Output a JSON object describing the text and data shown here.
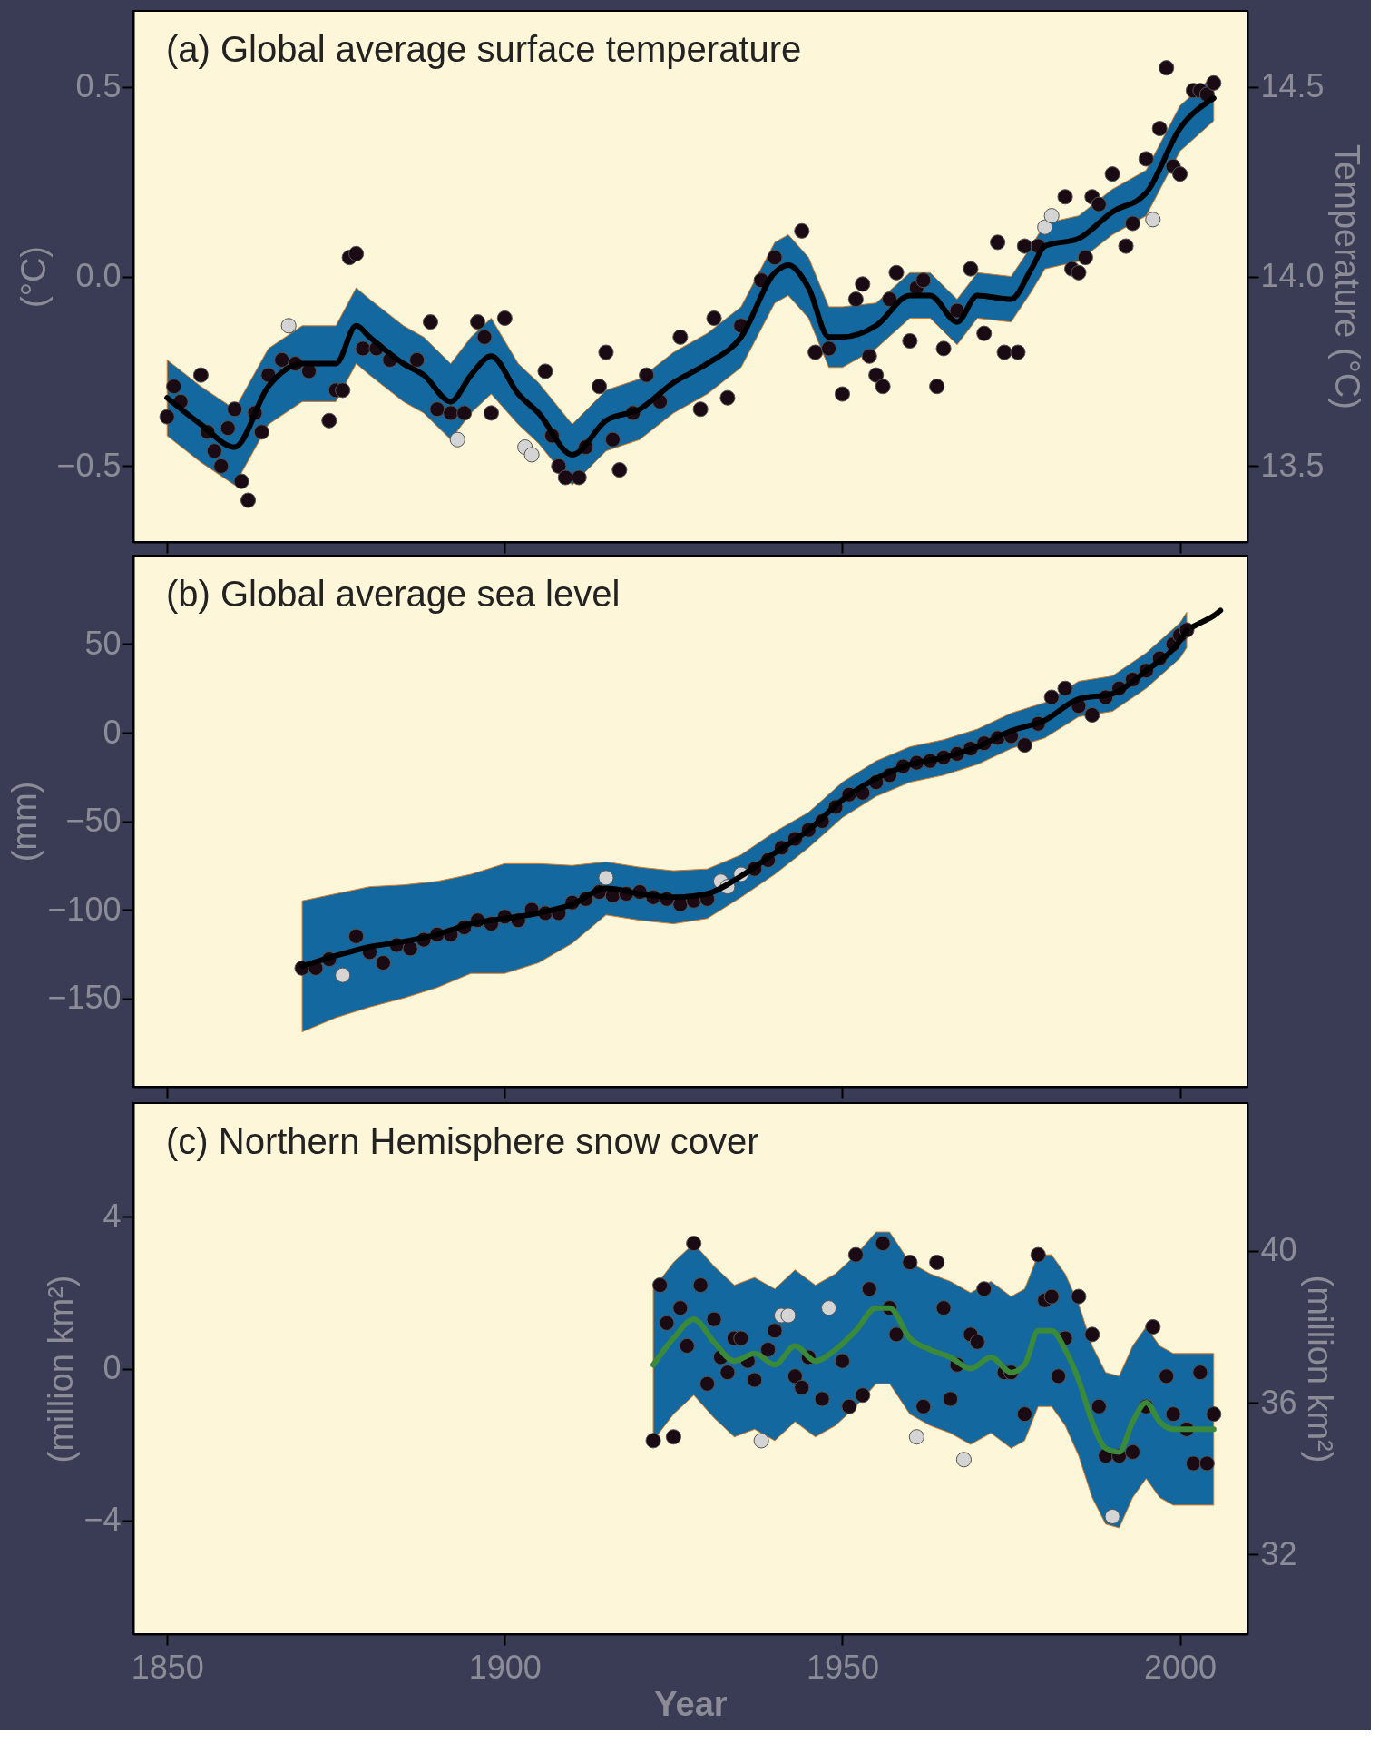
{
  "chart_data": [
    {
      "type": "scatter",
      "title": "(a) Global average surface temperature",
      "ylabel": "(°C)",
      "y2label": "Temperature (°C)",
      "xlim": [
        1845,
        2010
      ],
      "xticks": [
        1850,
        1900,
        1950,
        2000
      ],
      "ylim": [
        -0.7,
        0.7
      ],
      "yticks": [
        {
          "value": -0.5,
          "label": "−0.5"
        },
        {
          "value": 0,
          "label": "0.0"
        },
        0.5
      ],
      "y2lim": [
        13.3,
        14.7
      ],
      "y2ticks": [
        13.5,
        {
          "value": 14,
          "label": "14.0"
        },
        14.5
      ],
      "tick_labels": "y",
      "marker": "circle",
      "series": [
        {
          "type": "line",
          "marker": "none",
          "color": "#000000",
          "x": [
            1850,
            1855,
            1860,
            1865,
            1870,
            1875,
            1878,
            1880,
            1885,
            1888,
            1892,
            1895,
            1898,
            1902,
            1905,
            1910,
            1915,
            1920,
            1925,
            1930,
            1935,
            1940,
            1942,
            1945,
            1948,
            1950,
            1955,
            1960,
            1963,
            1967,
            1970,
            1975,
            1978,
            1980,
            1985,
            1990,
            1995,
            2000,
            2005
          ],
          "values": [
            -0.32,
            -0.39,
            -0.45,
            -0.29,
            -0.23,
            -0.23,
            -0.13,
            -0.16,
            -0.23,
            -0.26,
            -0.33,
            -0.26,
            -0.21,
            -0.31,
            -0.36,
            -0.47,
            -0.38,
            -0.35,
            -0.28,
            -0.23,
            -0.16,
            0.01,
            0.03,
            -0.03,
            -0.16,
            -0.16,
            -0.13,
            -0.05,
            -0.05,
            -0.12,
            -0.05,
            -0.06,
            0.02,
            0.08,
            0.1,
            0.17,
            0.22,
            0.39,
            0.47
          ],
          "upper": [
            -0.22,
            -0.29,
            -0.35,
            -0.19,
            -0.13,
            -0.13,
            -0.03,
            -0.06,
            -0.13,
            -0.16,
            -0.23,
            -0.16,
            -0.11,
            -0.23,
            -0.28,
            -0.39,
            -0.3,
            -0.27,
            -0.2,
            -0.15,
            -0.08,
            0.09,
            0.11,
            0.05,
            -0.08,
            -0.08,
            -0.07,
            0.01,
            0.01,
            -0.06,
            0.01,
            0.0,
            0.08,
            0.14,
            0.16,
            0.23,
            0.28,
            0.45,
            0.53
          ],
          "lower": [
            -0.42,
            -0.49,
            -0.55,
            -0.39,
            -0.33,
            -0.33,
            -0.23,
            -0.26,
            -0.33,
            -0.36,
            -0.43,
            -0.36,
            -0.31,
            -0.39,
            -0.44,
            -0.55,
            -0.46,
            -0.43,
            -0.36,
            -0.31,
            -0.24,
            -0.07,
            -0.05,
            -0.11,
            -0.24,
            -0.24,
            -0.19,
            -0.11,
            -0.11,
            -0.18,
            -0.11,
            -0.12,
            -0.04,
            0.02,
            0.04,
            0.11,
            0.16,
            0.33,
            0.41
          ]
        },
        {
          "color": "#1a0a14",
          "x": [
            1850,
            1851,
            1852,
            1855,
            1856,
            1857,
            1858,
            1859,
            1860,
            1861,
            1862,
            1863,
            1864,
            1865,
            1867,
            1869,
            1871,
            1874,
            1875,
            1876,
            1877,
            1878,
            1879,
            1881,
            1883,
            1887,
            1889,
            1890,
            1892,
            1894,
            1896,
            1897,
            1898,
            1900,
            1906,
            1907,
            1908,
            1909,
            1911,
            1912,
            1914,
            1915,
            1916,
            1917,
            1919,
            1921,
            1923,
            1926,
            1929,
            1931,
            1933,
            1935,
            1938,
            1940,
            1944,
            1946,
            1948,
            1950,
            1952,
            1953,
            1954,
            1955,
            1956,
            1957,
            1958,
            1960,
            1961,
            1962,
            1964,
            1965,
            1967,
            1969,
            1971,
            1973,
            1974,
            1976,
            1977,
            1979,
            1983,
            1984,
            1985,
            1986,
            1987,
            1988,
            1990,
            1992,
            1993,
            1995,
            1997,
            1998,
            1999,
            2000,
            2002,
            2003,
            2004,
            2005
          ],
          "values": [
            -0.37,
            -0.29,
            -0.33,
            -0.26,
            -0.41,
            -0.46,
            -0.5,
            -0.4,
            -0.35,
            -0.54,
            -0.59,
            -0.36,
            -0.41,
            -0.26,
            -0.22,
            -0.23,
            -0.25,
            -0.38,
            -0.3,
            -0.3,
            0.05,
            0.06,
            -0.19,
            -0.19,
            -0.22,
            -0.22,
            -0.12,
            -0.35,
            -0.36,
            -0.36,
            -0.12,
            -0.16,
            -0.36,
            -0.11,
            -0.25,
            -0.42,
            -0.5,
            -0.53,
            -0.53,
            -0.45,
            -0.29,
            -0.2,
            -0.43,
            -0.51,
            -0.36,
            -0.26,
            -0.33,
            -0.16,
            -0.35,
            -0.11,
            -0.32,
            -0.13,
            -0.01,
            0.05,
            0.12,
            -0.2,
            -0.19,
            -0.31,
            -0.06,
            -0.02,
            -0.21,
            -0.26,
            -0.29,
            -0.06,
            0.01,
            -0.17,
            -0.03,
            -0.01,
            -0.29,
            -0.19,
            -0.09,
            0.02,
            -0.15,
            0.09,
            -0.2,
            -0.2,
            0.08,
            0.08,
            0.21,
            0.02,
            0.01,
            0.05,
            0.21,
            0.19,
            0.27,
            0.08,
            0.14,
            0.31,
            0.39,
            0.55,
            0.29,
            0.27,
            0.49,
            0.49,
            0.48,
            0.51
          ]
        },
        {
          "color": "#d4d4d4",
          "x": [
            1868,
            1893,
            1903,
            1904,
            1980,
            1981,
            1996
          ],
          "values": [
            -0.13,
            -0.43,
            -0.45,
            -0.47,
            0.13,
            0.16,
            0.15
          ]
        }
      ]
    },
    {
      "type": "scatter",
      "title": "(b) Global average sea level",
      "ylabel": "(mm)",
      "xlim": [
        1845,
        2010
      ],
      "xticks": [
        1850,
        1900,
        1950,
        2000
      ],
      "ylim": [
        -200,
        100
      ],
      "yticks": [
        {
          "value": -150,
          "label": "−150"
        },
        {
          "value": -100,
          "label": "−100"
        },
        {
          "value": -50,
          "label": "−50"
        },
        0,
        50
      ],
      "tick_labels": "y",
      "marker": "circle",
      "series": [
        {
          "type": "line",
          "marker": "none",
          "color": "#000000",
          "x": [
            1870,
            1875,
            1880,
            1885,
            1890,
            1895,
            1900,
            1905,
            1910,
            1915,
            1920,
            1925,
            1930,
            1935,
            1940,
            1945,
            1950,
            1955,
            1960,
            1965,
            1970,
            1975,
            1980,
            1985,
            1990,
            1995,
            2000,
            2001
          ],
          "values": [
            -132,
            -126,
            -121,
            -118,
            -114,
            -108,
            -105,
            -102,
            -97,
            -88,
            -91,
            -93,
            -91,
            -81,
            -68,
            -55,
            -38,
            -26,
            -18,
            -14,
            -8,
            1,
            7,
            19,
            22,
            35,
            52,
            58
          ],
          "upper": [
            -95,
            -91,
            -87,
            -86,
            -84,
            -80,
            -74,
            -74,
            -75,
            -73,
            -76,
            -78,
            -77,
            -69,
            -56,
            -45,
            -28,
            -16,
            -8,
            -4,
            2,
            11,
            17,
            29,
            32,
            45,
            62,
            68
          ],
          "lower": [
            -169,
            -161,
            -155,
            -150,
            -144,
            -136,
            -136,
            -130,
            -119,
            -103,
            -106,
            -108,
            -105,
            -93,
            -80,
            -65,
            -48,
            -36,
            -28,
            -24,
            -18,
            -9,
            -3,
            9,
            12,
            25,
            42,
            48
          ]
        },
        {
          "type": "line",
          "marker": "none",
          "color": "#000000",
          "x": [
            2002,
            2003,
            2005,
            2006
          ],
          "values": [
            60,
            62,
            66,
            69
          ]
        },
        {
          "color": "#1a0a14",
          "x": [
            1870,
            1872,
            1874,
            1878,
            1880,
            1882,
            1884,
            1886,
            1888,
            1890,
            1892,
            1894,
            1896,
            1898,
            1900,
            1902,
            1904,
            1906,
            1908,
            1910,
            1912,
            1914,
            1916,
            1918,
            1920,
            1922,
            1924,
            1926,
            1928,
            1930,
            1937,
            1939,
            1941,
            1943,
            1945,
            1947,
            1949,
            1951,
            1953,
            1955,
            1957,
            1959,
            1961,
            1963,
            1965,
            1967,
            1969,
            1971,
            1973,
            1975,
            1977,
            1979,
            1981,
            1983,
            1985,
            1987,
            1989,
            1991,
            1993,
            1995,
            1997,
            1999,
            2000,
            2001
          ],
          "values": [
            -133,
            -133,
            -128,
            -115,
            -124,
            -130,
            -120,
            -122,
            -117,
            -114,
            -114,
            -110,
            -106,
            -108,
            -104,
            -106,
            -100,
            -102,
            -102,
            -96,
            -94,
            -90,
            -92,
            -91,
            -90,
            -93,
            -94,
            -97,
            -95,
            -94,
            -77,
            -72,
            -65,
            -60,
            -55,
            -50,
            -42,
            -35,
            -34,
            -28,
            -24,
            -19,
            -17,
            -16,
            -14,
            -12,
            -9,
            -6,
            -3,
            -2,
            -7,
            5,
            20,
            25,
            15,
            10,
            20,
            25,
            30,
            35,
            42,
            50,
            55,
            58
          ]
        },
        {
          "color": "#d4d4d4",
          "x": [
            1876,
            1915,
            1932,
            1933,
            1935
          ],
          "values": [
            -137,
            -82,
            -84,
            -87,
            -80
          ]
        }
      ]
    },
    {
      "type": "scatter",
      "title": "(c) Northern Hemisphere snow cover",
      "xlabel": "Year",
      "ylabel": "(million km²)",
      "y2label": "(million km²)",
      "xlim": [
        1845,
        2010
      ],
      "xticks": [
        1850,
        1900,
        1950,
        2000
      ],
      "ylim": [
        -7,
        7
      ],
      "yticks": [
        {
          "value": -4,
          "label": "−4"
        },
        0,
        4
      ],
      "y2lim": [
        29.9,
        43.9
      ],
      "y2ticks": [
        32,
        36,
        40
      ],
      "marker": "circle",
      "series": [
        {
          "type": "line",
          "marker": "none",
          "color": "#3a8a3a",
          "x": [
            1922,
            1925,
            1928,
            1931,
            1934,
            1937,
            1940,
            1943,
            1946,
            1949,
            1952,
            1955,
            1957,
            1960,
            1963,
            1966,
            1969,
            1972,
            1975,
            1977,
            1979,
            1981,
            1983,
            1985,
            1987,
            1989,
            1991,
            1993,
            1995,
            1997,
            1999,
            2001,
            2005
          ],
          "values": [
            0.1,
            0.8,
            1.3,
            0.7,
            0.2,
            0.4,
            0.1,
            0.6,
            0.2,
            0.5,
            1.0,
            1.6,
            1.6,
            0.8,
            0.5,
            0.3,
            0.0,
            0.3,
            -0.1,
            0.1,
            1.0,
            1.0,
            0.5,
            -0.3,
            -1.4,
            -2.1,
            -2.2,
            -1.4,
            -0.9,
            -1.4,
            -1.6,
            -1.6,
            -1.6
          ],
          "upper": [
            2.1,
            2.8,
            3.3,
            2.7,
            2.2,
            2.4,
            2.1,
            2.6,
            2.2,
            2.5,
            3.0,
            3.6,
            3.6,
            2.8,
            2.5,
            2.3,
            2.0,
            2.3,
            1.9,
            2.1,
            3.0,
            3.0,
            2.5,
            1.7,
            0.6,
            -0.1,
            -0.2,
            0.6,
            1.1,
            0.6,
            0.4,
            0.4,
            0.4
          ],
          "lower": [
            -1.9,
            -1.2,
            -0.7,
            -1.3,
            -1.8,
            -1.6,
            -1.9,
            -1.4,
            -1.8,
            -1.5,
            -1.0,
            -0.4,
            -0.4,
            -1.2,
            -1.5,
            -1.7,
            -2.0,
            -1.7,
            -2.1,
            -1.9,
            -1.0,
            -1.0,
            -1.5,
            -2.3,
            -3.4,
            -4.1,
            -4.2,
            -3.4,
            -2.9,
            -3.4,
            -3.6,
            -3.6,
            -3.6
          ]
        },
        {
          "color": "#1a0a14",
          "x": [
            1922,
            1923,
            1924,
            1925,
            1926,
            1927,
            1928,
            1929,
            1930,
            1931,
            1932,
            1933,
            1934,
            1935,
            1936,
            1937,
            1939,
            1940,
            1943,
            1944,
            1945,
            1947,
            1950,
            1951,
            1952,
            1953,
            1954,
            1956,
            1957,
            1958,
            1960,
            1962,
            1964,
            1965,
            1966,
            1967,
            1969,
            1970,
            1971,
            1974,
            1975,
            1977,
            1979,
            1980,
            1981,
            1982,
            1983,
            1985,
            1987,
            1988,
            1989,
            1991,
            1993,
            1995,
            1996,
            1998,
            1999,
            2001,
            2002,
            2003,
            2004,
            2005
          ],
          "values": [
            -1.9,
            2.2,
            1.2,
            -1.8,
            1.6,
            0.6,
            3.3,
            2.2,
            -0.4,
            1.3,
            0.3,
            -0.1,
            0.8,
            0.8,
            0.2,
            -0.3,
            0.5,
            1.0,
            -0.2,
            -0.5,
            0.3,
            -0.8,
            0.2,
            -1.0,
            3.0,
            -0.7,
            2.1,
            3.3,
            1.6,
            0.9,
            2.8,
            -1.0,
            2.8,
            1.6,
            -0.8,
            0.1,
            0.9,
            0.7,
            2.1,
            -0.1,
            -0.1,
            -1.2,
            3.0,
            1.8,
            1.9,
            -0.2,
            0.8,
            1.9,
            0.9,
            -1.0,
            -2.3,
            -2.3,
            -2.2,
            -1.0,
            1.1,
            -0.2,
            -1.2,
            -1.6,
            -2.5,
            -0.1,
            -2.5,
            -1.2
          ]
        },
        {
          "color": "#d4d4d4",
          "x": [
            1938,
            1941,
            1942,
            1948,
            1961,
            1968,
            1990
          ],
          "values": [
            -1.9,
            1.4,
            1.4,
            1.6,
            -1.8,
            -2.4,
            -3.9
          ]
        }
      ]
    }
  ]
}
